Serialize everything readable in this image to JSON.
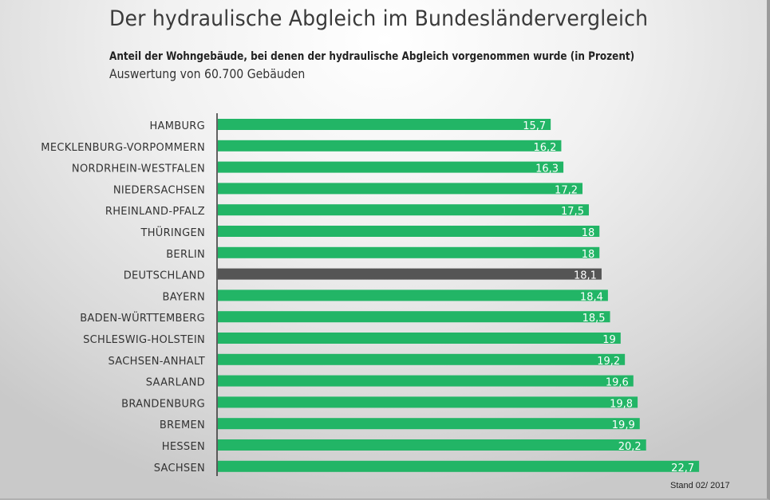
{
  "header": {
    "title": "Der hydraulische Abgleich im Bundesländervergleich",
    "subtitle": "Anteil der Wohngebäude, bei denen der hydraulische Abgleich vorgenommen wurde (in Prozent)",
    "note": "Auswertung von 60.700 Gebäuden"
  },
  "footer": {
    "stand": "Stand 02/ 2017"
  },
  "colors": {
    "bar": "#22b566",
    "highlight": "#555555",
    "axis": "#333333"
  },
  "chart_data": {
    "type": "bar",
    "orientation": "horizontal",
    "title": "Der hydraulische Abgleich im Bundesländervergleich",
    "subtitle": "Anteil der Wohngebäude, bei denen der hydraulische Abgleich vorgenommen wurde (in Prozent)",
    "xlabel": "",
    "ylabel": "",
    "xlim": [
      0,
      22.7
    ],
    "grid": false,
    "legend": "none",
    "highlight_category": "DEUTSCHLAND",
    "categories": [
      "HAMBURG",
      "MECKLENBURG-VORPOMMERN",
      "NORDRHEIN-WESTFALEN",
      "NIEDERSACHSEN",
      "RHEINLAND-PFALZ",
      "THÜRINGEN",
      "BERLIN",
      "DEUTSCHLAND",
      "BAYERN",
      "BADEN-WÜRTTEMBERG",
      "SCHLESWIG-HOLSTEIN",
      "SACHSEN-ANHALT",
      "SAARLAND",
      "BRANDENBURG",
      "BREMEN",
      "HESSEN",
      "SACHSEN"
    ],
    "values": [
      15.7,
      16.2,
      16.3,
      17.2,
      17.5,
      18,
      18,
      18.1,
      18.4,
      18.5,
      19,
      19.2,
      19.6,
      19.8,
      19.9,
      20.2,
      22.7
    ],
    "value_labels": [
      "15,7",
      "16,2",
      "16,3",
      "17,2",
      "17,5",
      "18",
      "18",
      "18,1",
      "18,4",
      "18,5",
      "19",
      "19,2",
      "19,6",
      "19,8",
      "19,9",
      "20,2",
      "22,7"
    ]
  }
}
